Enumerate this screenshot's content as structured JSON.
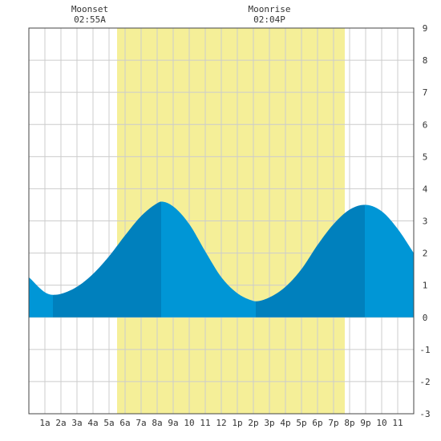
{
  "header": {
    "moonset_label": "Moonset",
    "moonset_time": "02:55A",
    "moonrise_label": "Moonrise",
    "moonrise_time": "02:04P"
  },
  "colors": {
    "daylight": "#f5ef98",
    "tide_fill": "#0096d6",
    "tide_rising": "#0080bd",
    "grid": "#cccccc",
    "axis": "#444444"
  },
  "chart_data": {
    "type": "area",
    "title": "",
    "xlabel": "",
    "ylabel": "",
    "x_range_hours": [
      0,
      24
    ],
    "ylim": [
      -3,
      9
    ],
    "y_ticks": [
      -3,
      -2,
      -1,
      0,
      1,
      2,
      3,
      4,
      5,
      6,
      7,
      8,
      9
    ],
    "x_ticks": [
      {
        "hour": 1,
        "label": "1a"
      },
      {
        "hour": 2,
        "label": "2a"
      },
      {
        "hour": 3,
        "label": "3a"
      },
      {
        "hour": 4,
        "label": "4a"
      },
      {
        "hour": 5,
        "label": "5a"
      },
      {
        "hour": 6,
        "label": "6a"
      },
      {
        "hour": 7,
        "label": "7a"
      },
      {
        "hour": 8,
        "label": "8a"
      },
      {
        "hour": 9,
        "label": "9a"
      },
      {
        "hour": 10,
        "label": "10"
      },
      {
        "hour": 11,
        "label": "11"
      },
      {
        "hour": 12,
        "label": "12"
      },
      {
        "hour": 13,
        "label": "1p"
      },
      {
        "hour": 14,
        "label": "2p"
      },
      {
        "hour": 15,
        "label": "3p"
      },
      {
        "hour": 16,
        "label": "4p"
      },
      {
        "hour": 17,
        "label": "5p"
      },
      {
        "hour": 18,
        "label": "6p"
      },
      {
        "hour": 19,
        "label": "7p"
      },
      {
        "hour": 20,
        "label": "8p"
      },
      {
        "hour": 21,
        "label": "9p"
      },
      {
        "hour": 22,
        "label": "10"
      },
      {
        "hour": 23,
        "label": "11"
      }
    ],
    "daylight_hours": [
      5.5,
      19.7
    ],
    "extremes": [
      {
        "hour": 1.5,
        "height": 0.7,
        "kind": "low"
      },
      {
        "hour": 8.25,
        "height": 3.6,
        "kind": "high"
      },
      {
        "hour": 14.15,
        "height": 0.5,
        "kind": "low"
      },
      {
        "hour": 20.95,
        "height": 3.5,
        "kind": "high"
      }
    ],
    "series": [
      {
        "x": [
          0,
          1,
          1.5,
          2,
          3,
          4,
          5,
          6,
          7,
          8,
          8.25,
          9,
          10,
          11,
          12,
          13,
          14,
          14.15,
          15,
          16,
          17,
          18,
          19,
          20,
          20.95,
          22,
          23,
          24
        ],
        "values": [
          1.25,
          0.78,
          0.7,
          0.73,
          0.95,
          1.35,
          1.9,
          2.55,
          3.15,
          3.55,
          3.6,
          3.45,
          2.9,
          2.05,
          1.25,
          0.75,
          0.51,
          0.5,
          0.62,
          0.95,
          1.5,
          2.25,
          2.9,
          3.35,
          3.5,
          3.3,
          2.75,
          2.0
        ]
      }
    ]
  }
}
